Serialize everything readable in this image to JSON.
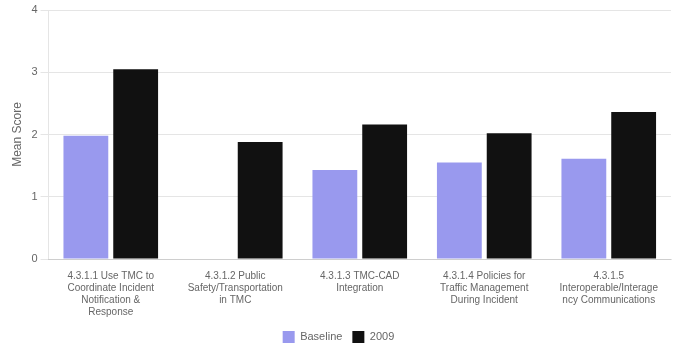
{
  "chart_data": {
    "type": "bar",
    "categories": [
      "4.3.1.1 Use TMC to\nCoordinate Incident\nNotification &\nResponse",
      "4.3.1.2 Public\nSafety/Transportation\nin TMC",
      "4.3.1.3 TMC-CAD\nIntegration",
      "4.3.1.4 Policies for\nTraffic Management\nDuring Incident",
      "4.3.1.5\nInteroperable/Interage\nncy Communications"
    ],
    "series": [
      {
        "name": "Baseline",
        "color": "#9999ee",
        "values": [
          1.98,
          null,
          1.43,
          1.55,
          1.61
        ]
      },
      {
        "name": "2009",
        "color": "#111111",
        "values": [
          3.05,
          1.88,
          2.16,
          2.02,
          2.36
        ]
      }
    ],
    "ylabel": "Mean Score",
    "ylim": [
      0,
      4
    ],
    "yticks": [
      0,
      1,
      2,
      3,
      4
    ],
    "grid": true,
    "legend": "bottom"
  }
}
